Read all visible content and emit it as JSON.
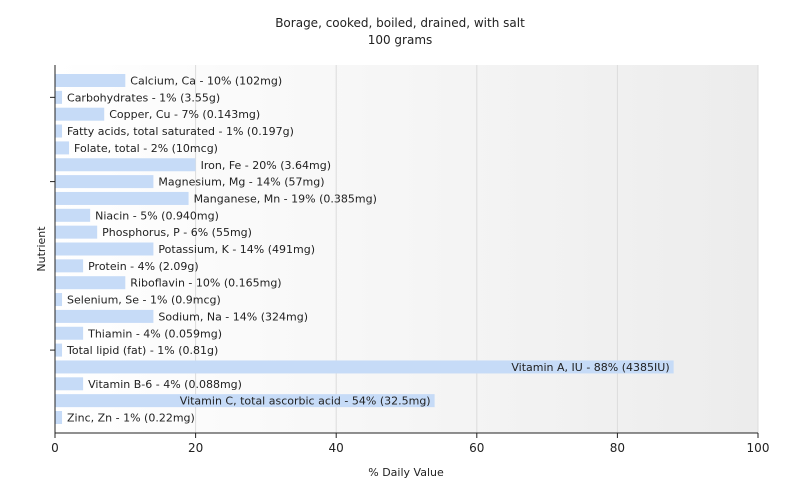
{
  "chart_data": {
    "type": "bar",
    "orientation": "horizontal",
    "title": "Borage, cooked, boiled, drained, with salt",
    "subtitle": "100 grams",
    "xlabel": "% Daily Value",
    "ylabel": "Nutrient",
    "xlim": [
      0,
      100
    ],
    "x_ticks": [
      0,
      20,
      40,
      60,
      80,
      100
    ],
    "grid": true,
    "bar_color": "#c6dbf7",
    "categories": [
      "Calcium, Ca",
      "Carbohydrates",
      "Copper, Cu",
      "Fatty acids, total saturated",
      "Folate, total",
      "Iron, Fe",
      "Magnesium, Mg",
      "Manganese, Mn",
      "Niacin",
      "Phosphorus, P",
      "Potassium, K",
      "Protein",
      "Riboflavin",
      "Selenium, Se",
      "Sodium, Na",
      "Thiamin",
      "Total lipid (fat)",
      "Vitamin A, IU",
      "Vitamin B-6",
      "Vitamin C, total ascorbic acid",
      "Zinc, Zn"
    ],
    "values": [
      10,
      1,
      7,
      1,
      2,
      20,
      14,
      19,
      5,
      6,
      14,
      4,
      10,
      1,
      14,
      4,
      1,
      88,
      4,
      54,
      1
    ],
    "labels": [
      "Calcium, Ca - 10% (102mg)",
      "Carbohydrates - 1% (3.55g)",
      "Copper, Cu - 7% (0.143mg)",
      "Fatty acids, total saturated - 1% (0.197g)",
      "Folate, total - 2% (10mcg)",
      "Iron, Fe - 20% (3.64mg)",
      "Magnesium, Mg - 14% (57mg)",
      "Manganese, Mn - 19% (0.385mg)",
      "Niacin - 5% (0.940mg)",
      "Phosphorus, P - 6% (55mg)",
      "Potassium, K - 14% (491mg)",
      "Protein - 4% (2.09g)",
      "Riboflavin - 10% (0.165mg)",
      "Selenium, Se - 1% (0.9mcg)",
      "Sodium, Na - 14% (324mg)",
      "Thiamin - 4% (0.059mg)",
      "Total lipid (fat) - 1% (0.81g)",
      "Vitamin A, IU - 88% (4385IU)",
      "Vitamin B-6 - 4% (0.088mg)",
      "Vitamin C, total ascorbic acid - 54% (32.5mg)",
      "Zinc, Zn - 1% (0.22mg)"
    ]
  }
}
